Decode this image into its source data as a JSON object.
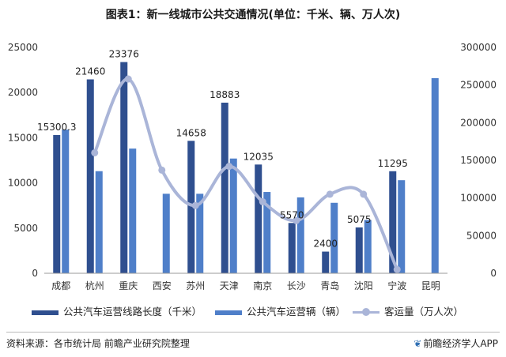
{
  "chart_data": {
    "type": "bar",
    "title": "图表1：新一线城市公共交通情况(单位：千米、辆、万人次)",
    "categories": [
      "成都",
      "杭州",
      "重庆",
      "西安",
      "苏州",
      "天津",
      "南京",
      "长沙",
      "青岛",
      "沈阳",
      "宁波",
      "昆明"
    ],
    "series": [
      {
        "name": "公共汽车运营线路长度（千米）",
        "type": "bar",
        "axis": "left",
        "color": "#2f4f8f",
        "values": [
          15300.3,
          21460,
          23376,
          null,
          14658,
          18883,
          12035,
          5570,
          2400,
          5075,
          11295,
          null
        ],
        "data_labels": [
          "15300.3",
          "21460",
          "23376",
          "",
          "14658",
          "18883",
          "12035",
          "5570",
          "2400",
          "5075",
          "11295",
          ""
        ]
      },
      {
        "name": "公共汽车运营辆（辆）",
        "type": "bar",
        "axis": "left",
        "color": "#4f7fc9",
        "values": [
          15900,
          11300,
          13800,
          8800,
          8800,
          12700,
          9000,
          8400,
          7800,
          5900,
          10300,
          21600
        ]
      },
      {
        "name": "客运量（万人次）",
        "type": "line",
        "axis": "right",
        "color": "#aab5d8",
        "values": [
          null,
          160000,
          258000,
          137000,
          90000,
          142000,
          95000,
          70000,
          105000,
          105000,
          5000,
          null
        ]
      }
    ],
    "y_left": {
      "min": 0,
      "max": 25000,
      "ticks": [
        0,
        5000,
        10000,
        15000,
        20000,
        25000
      ]
    },
    "y_right": {
      "min": 0,
      "max": 300000,
      "ticks": [
        0,
        50000,
        100000,
        150000,
        200000,
        250000,
        300000
      ]
    },
    "grid": false,
    "legend_position": "bottom"
  },
  "legend": [
    {
      "label": "公共汽车运营线路长度（千米）",
      "kind": "bar",
      "color": "#2f4f8f"
    },
    {
      "label": "公共汽车运营辆（辆）",
      "kind": "bar",
      "color": "#4f7fc9"
    },
    {
      "label": "客运量（万人次）",
      "kind": "line",
      "color": "#aab5d8"
    }
  ],
  "footer": {
    "source": "资料来源：各市统计局 前瞻产业研究院整理",
    "brand": "前瞻经济学人APP",
    "brand_icon": "leaf-logo-icon"
  },
  "watermark": "前瞻产业研究院"
}
